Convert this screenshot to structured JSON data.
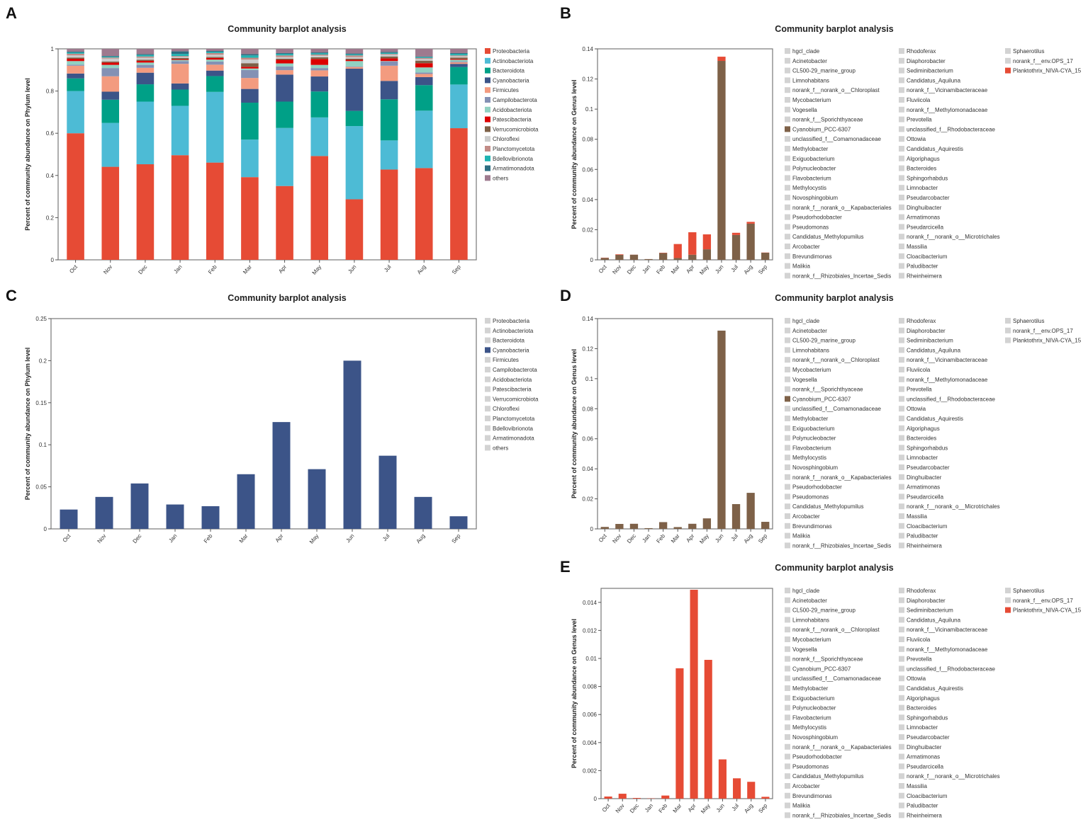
{
  "months": [
    "Oct",
    "Nov",
    "Dec",
    "Jan",
    "Feb",
    "Mar",
    "Apr",
    "May",
    "Jun",
    "Jul",
    "Aug",
    "Sep"
  ],
  "phyla": [
    {
      "name": "Proteobacteria",
      "color": "#E64B35"
    },
    {
      "name": "Actinobacteriota",
      "color": "#4DBBD5"
    },
    {
      "name": "Bacteroidota",
      "color": "#00A087"
    },
    {
      "name": "Cyanobacteria",
      "color": "#3C5488"
    },
    {
      "name": "Firmicutes",
      "color": "#F39B7F"
    },
    {
      "name": "Campilobacterota",
      "color": "#8491B4"
    },
    {
      "name": "Acidobacteriota",
      "color": "#91D1C2"
    },
    {
      "name": "Patescibacteria",
      "color": "#DC0000"
    },
    {
      "name": "Verrucomicrobiota",
      "color": "#7E6148"
    },
    {
      "name": "Chloroflexi",
      "color": "#CCCCCC"
    },
    {
      "name": "Planctomycetota",
      "color": "#C28B86"
    },
    {
      "name": "Bdellovibrionota",
      "color": "#1FB3B2"
    },
    {
      "name": "Armatimonadota",
      "color": "#2E6E82"
    },
    {
      "name": "others",
      "color": "#9E7A8E"
    }
  ],
  "genera": [
    "hgcl_clade",
    "Acinetobacter",
    "CL500-29_marine_group",
    "Limnohabitans",
    "norank_f__norank_o__Chloroplast",
    "Mycobacterium",
    "Vogesella",
    "norank_f__Sporichthyaceae",
    "Cyanobium_PCC-6307",
    "unclassified_f__Comamonadaceae",
    "Methylobacter",
    "Exiguobacterium",
    "Polynucleobacter",
    "Flavobacterium",
    "Methylocystis",
    "Novosphingobium",
    "norank_f__norank_o__Kapabacteriales",
    "Pseudorhodobacter",
    "Pseudomonas",
    "Candidatus_Methylopumilus",
    "Arcobacter",
    "Brevundimonas",
    "Malikia",
    "norank_f__Rhizobiales_Incertae_Sedis",
    "Rhodoferax",
    "Diaphorobacter",
    "Sediminibacterium",
    "Candidatus_Aquiluna",
    "norank_f__Vicinamibacteraceae",
    "Fluviicola",
    "norank_f__Methylomonadaceae",
    "Prevotella",
    "unclassified_f__Rhodobacteraceae",
    "Ottowia",
    "Candidatus_Aquirestis",
    "Algoriphagus",
    "Bacteroides",
    "Sphingorhabdus",
    "Limnobacter",
    "Pseudarcobacter",
    "Dinghuibacter",
    "Armatimonas",
    "Pseudarcicella",
    "norank_f__norank_o__Microtrichales",
    "Massilia",
    "Cloacibacterium",
    "Paludibacter",
    "Rheinheimera",
    "Sphaerotilus",
    "norank_f__env.OPS_17",
    "Planktothrix_NIVA-CYA_15"
  ],
  "inactive_color": "#D3D3D3",
  "chart_data": [
    {
      "panel": "A",
      "type": "bar",
      "stacked": true,
      "title": "Community barplot analysis",
      "ylabel": "Percent of community abundance on Phylum level",
      "xlabel": "",
      "ylim": [
        0,
        1
      ],
      "yticks": [
        "0",
        "0.2",
        "0.4",
        "0.6",
        "0.8",
        "1"
      ],
      "ytick_values": [
        0,
        0.2,
        0.4,
        0.6,
        0.8,
        1
      ],
      "legend": "right",
      "legend_type": "phyla",
      "series_values": [
        [
          0.6,
          0.2,
          0.06,
          0.023,
          0.037,
          0.005,
          0.017,
          0.011,
          0.006,
          0.01,
          0.008,
          0.006,
          0.004,
          0.013
        ],
        [
          0.441,
          0.208,
          0.11,
          0.038,
          0.073,
          0.039,
          0.015,
          0.011,
          0.005,
          0.014,
          0.005,
          0.004,
          0.003,
          0.034
        ],
        [
          0.453,
          0.297,
          0.082,
          0.055,
          0.023,
          0.014,
          0.011,
          0.008,
          0.005,
          0.01,
          0.006,
          0.007,
          0.004,
          0.025
        ],
        [
          0.496,
          0.234,
          0.077,
          0.029,
          0.093,
          0.013,
          0.005,
          0.004,
          0.006,
          0.005,
          0.004,
          0.01,
          0.012,
          0.012
        ],
        [
          0.461,
          0.335,
          0.075,
          0.026,
          0.028,
          0.015,
          0.009,
          0.008,
          0.005,
          0.01,
          0.008,
          0.006,
          0.004,
          0.01
        ],
        [
          0.392,
          0.178,
          0.175,
          0.065,
          0.052,
          0.038,
          0.007,
          0.008,
          0.017,
          0.017,
          0.009,
          0.011,
          0.006,
          0.025
        ],
        [
          0.35,
          0.275,
          0.125,
          0.128,
          0.021,
          0.018,
          0.014,
          0.017,
          0.005,
          0.008,
          0.008,
          0.007,
          0.004,
          0.02
        ],
        [
          0.492,
          0.183,
          0.123,
          0.071,
          0.029,
          0.011,
          0.015,
          0.028,
          0.008,
          0.008,
          0.005,
          0.006,
          0.004,
          0.017
        ],
        [
          0.287,
          0.347,
          0.072,
          0.2,
          0.008,
          0.003,
          0.025,
          0.006,
          0.005,
          0.008,
          0.008,
          0.005,
          0.004,
          0.022
        ],
        [
          0.428,
          0.138,
          0.195,
          0.087,
          0.072,
          0.02,
          0.002,
          0.013,
          0.009,
          0.008,
          0.004,
          0.005,
          0.004,
          0.015
        ],
        [
          0.435,
          0.272,
          0.121,
          0.038,
          0.015,
          0.007,
          0.024,
          0.02,
          0.012,
          0.008,
          0.005,
          0.004,
          0.003,
          0.036
        ],
        [
          0.624,
          0.207,
          0.083,
          0.015,
          0.007,
          0.004,
          0.008,
          0.004,
          0.007,
          0.006,
          0.004,
          0.007,
          0.004,
          0.02
        ]
      ]
    },
    {
      "panel": "B",
      "type": "bar",
      "stacked": true,
      "title": "Community barplot analysis",
      "ylabel": "Percent of community abundance on Genus level",
      "ylim": [
        0,
        0.14
      ],
      "yticks": [
        "0",
        "0.02",
        "0.04",
        "0.06",
        "0.08",
        "0.1",
        "0.12",
        "0.14"
      ],
      "ytick_values": [
        0,
        0.02,
        0.04,
        0.06,
        0.08,
        0.1,
        0.12,
        0.14
      ],
      "legend": "right",
      "legend_type": "genera",
      "series": [
        {
          "name": "Cyanobium_PCC-6307",
          "color": "#7E6148",
          "values": [
            0.0013,
            0.0033,
            0.0034,
            0.0005,
            0.0045,
            0.0012,
            0.0034,
            0.007,
            0.132,
            0.0165,
            0.024,
            0.0047
          ]
        },
        {
          "name": "Planktothrix_NIVA-CYA_15",
          "color": "#E64B35",
          "values": [
            0.00015,
            0.00035,
            5e-05,
            2e-05,
            0.00022,
            0.0093,
            0.0149,
            0.0099,
            0.0028,
            0.00145,
            0.0012,
            0.00013
          ]
        }
      ]
    },
    {
      "panel": "C",
      "type": "bar",
      "title": "Community barplot analysis",
      "ylabel": "Percent of community abundance on Phylum level",
      "ylim": [
        0,
        0.25
      ],
      "yticks": [
        "0",
        "0.05",
        "0.1",
        "0.15",
        "0.2",
        "0.25"
      ],
      "ytick_values": [
        0,
        0.05,
        0.1,
        0.15,
        0.2,
        0.25
      ],
      "legend": "right",
      "legend_type": "phyla",
      "highlight": "Cyanobacteria",
      "series": [
        {
          "name": "Cyanobacteria",
          "color": "#3C5488",
          "values": [
            0.023,
            0.038,
            0.054,
            0.029,
            0.027,
            0.065,
            0.127,
            0.071,
            0.2,
            0.087,
            0.038,
            0.015
          ]
        }
      ]
    },
    {
      "panel": "D",
      "type": "bar",
      "title": "Community barplot analysis",
      "ylabel": "Percent of community abundance on Genus level",
      "ylim": [
        0,
        0.14
      ],
      "yticks": [
        "0",
        "0.02",
        "0.04",
        "0.06",
        "0.08",
        "0.1",
        "0.12",
        "0.14"
      ],
      "ytick_values": [
        0,
        0.02,
        0.04,
        0.06,
        0.08,
        0.1,
        0.12,
        0.14
      ],
      "legend": "right",
      "legend_type": "genera",
      "series": [
        {
          "name": "Cyanobium_PCC-6307",
          "color": "#7E6148",
          "values": [
            0.0013,
            0.0033,
            0.0034,
            0.0005,
            0.0045,
            0.0012,
            0.0034,
            0.007,
            0.132,
            0.0165,
            0.024,
            0.0047
          ]
        }
      ]
    },
    {
      "panel": "E",
      "type": "bar",
      "title": "Community barplot analysis",
      "ylabel": "Percent of community abundance on Genus level",
      "ylim": [
        0,
        0.015
      ],
      "yticks": [
        "0",
        "0.002",
        "0.004",
        "0.006",
        "0.008",
        "0.01",
        "0.012",
        "0.014"
      ],
      "ytick_values": [
        0,
        0.002,
        0.004,
        0.006,
        0.008,
        0.01,
        0.012,
        0.014
      ],
      "legend": "right",
      "legend_type": "genera",
      "series": [
        {
          "name": "Planktothrix_NIVA-CYA_15",
          "color": "#E64B35",
          "values": [
            0.00015,
            0.00035,
            5e-05,
            2e-05,
            0.00022,
            0.0093,
            0.0149,
            0.0099,
            0.0028,
            0.00145,
            0.0012,
            0.00013
          ]
        }
      ]
    }
  ]
}
